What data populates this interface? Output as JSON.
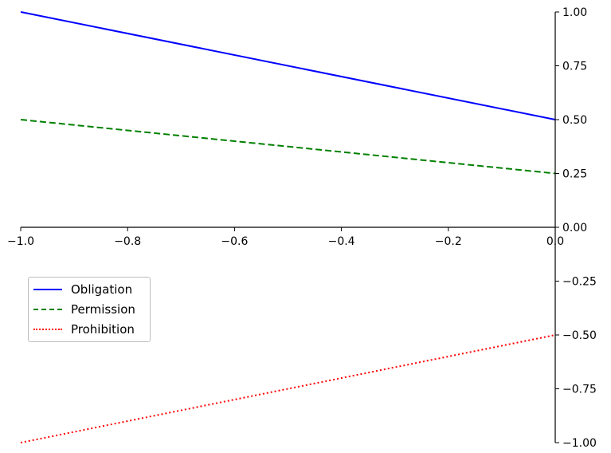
{
  "chart_data": {
    "type": "line",
    "title": "",
    "xlabel": "",
    "ylabel": "",
    "xlim": [
      -1.0,
      0.0
    ],
    "ylim": [
      -1.0,
      1.0
    ],
    "x_ticks": [
      -1.0,
      -0.8,
      -0.6,
      -0.4,
      -0.2,
      0.0
    ],
    "x_tick_labels": [
      "−1.0",
      "−0.8",
      "−0.6",
      "−0.4",
      "−0.2",
      "0.0"
    ],
    "y_ticks": [
      1.0,
      0.75,
      0.5,
      0.25,
      0.0,
      -0.25,
      -0.5,
      -0.75,
      -1.0
    ],
    "y_tick_labels": [
      "1.00",
      "0.75",
      "0.50",
      "0.25",
      "0.00",
      "−0.25",
      "−0.50",
      "−0.75",
      "−1.00"
    ],
    "spines": "x-axis at y=0, y-axis at x=0 (right)",
    "grid": false,
    "legend_position": "center-left",
    "series": [
      {
        "name": "Obligation",
        "color": "#0000ff",
        "style": "solid",
        "x": [
          -1.0,
          0.0
        ],
        "y": [
          1.0,
          0.5
        ]
      },
      {
        "name": "Permission",
        "color": "#008000",
        "style": "dashed",
        "x": [
          -1.0,
          0.0
        ],
        "y": [
          0.5,
          0.25
        ]
      },
      {
        "name": "Prohibition",
        "color": "#ff0000",
        "style": "dotted",
        "x": [
          -1.0,
          0.0
        ],
        "y": [
          -1.0,
          -0.5
        ]
      }
    ]
  }
}
